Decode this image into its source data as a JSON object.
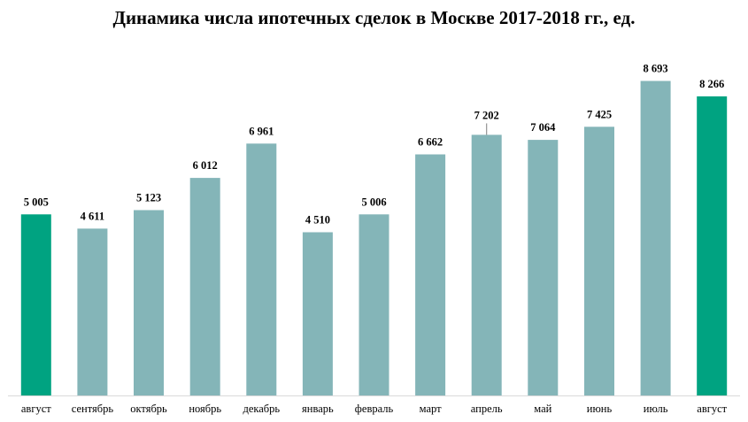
{
  "chart_data": {
    "type": "bar",
    "title": "Динамика числа ипотечных сделок в Москве 2017-2018 гг., ед.",
    "xlabel": "",
    "ylabel": "",
    "ylim": [
      0,
      10000
    ],
    "grid": false,
    "legend": "none",
    "categories": [
      "август",
      "сентябрь",
      "октябрь",
      "ноябрь",
      "декабрь",
      "январь",
      "февраль",
      "март",
      "апрель",
      "май",
      "июнь",
      "июль",
      "август"
    ],
    "values": [
      5005,
      4611,
      5123,
      6012,
      6961,
      4510,
      5006,
      6662,
      7202,
      7064,
      7425,
      8693,
      8266
    ],
    "value_labels": [
      "5 005",
      "4 611",
      "5 123",
      "6 012",
      "6 961",
      "4 510",
      "5 006",
      "6 662",
      "7 202",
      "7 064",
      "7 425",
      "8 693",
      "8 266"
    ],
    "highlighted": [
      true,
      false,
      false,
      false,
      false,
      false,
      false,
      false,
      false,
      false,
      false,
      false,
      true
    ],
    "colors": {
      "bar": "#84B5B8",
      "highlight": "#00A381",
      "axis": "#D9D9D9"
    }
  }
}
